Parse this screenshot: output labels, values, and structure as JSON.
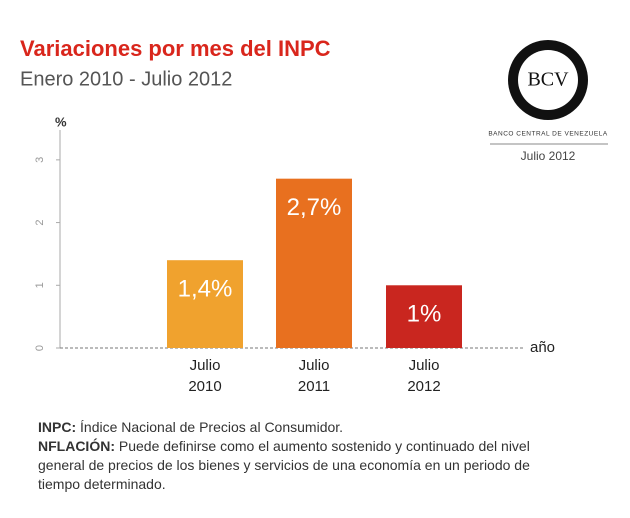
{
  "chart_data": {
    "type": "bar",
    "title": "Variaciones por mes del INPC",
    "subtitle": "Enero 2010 - Julio 2012",
    "y_label": "%",
    "x_label": "año",
    "categories": [
      "Julio 2010",
      "Julio 2011",
      "Julio 2012"
    ],
    "values": [
      1.4,
      2.7,
      1
    ],
    "value_labels": [
      "1,4%",
      "2,7%",
      "1%"
    ],
    "colors": [
      "#f0a22e",
      "#e8701f",
      "#c9261f"
    ],
    "ylim": [
      0,
      3.5
    ],
    "yticks": [
      0,
      1,
      2,
      3
    ]
  },
  "logo": {
    "mark": "BCV",
    "name": "BANCO CENTRAL DE VENEZUELA",
    "date": "Julio 2012"
  },
  "notes": [
    {
      "term": "INPC:",
      "text": "Índice Nacional de Precios al Consumidor."
    },
    {
      "term": "NFLACIÓN:",
      "text": "Puede definirse como el aumento sostenido y continuado del nivel general de precios de los bienes y servicios de una economía en un periodo de tiempo determinado."
    }
  ]
}
